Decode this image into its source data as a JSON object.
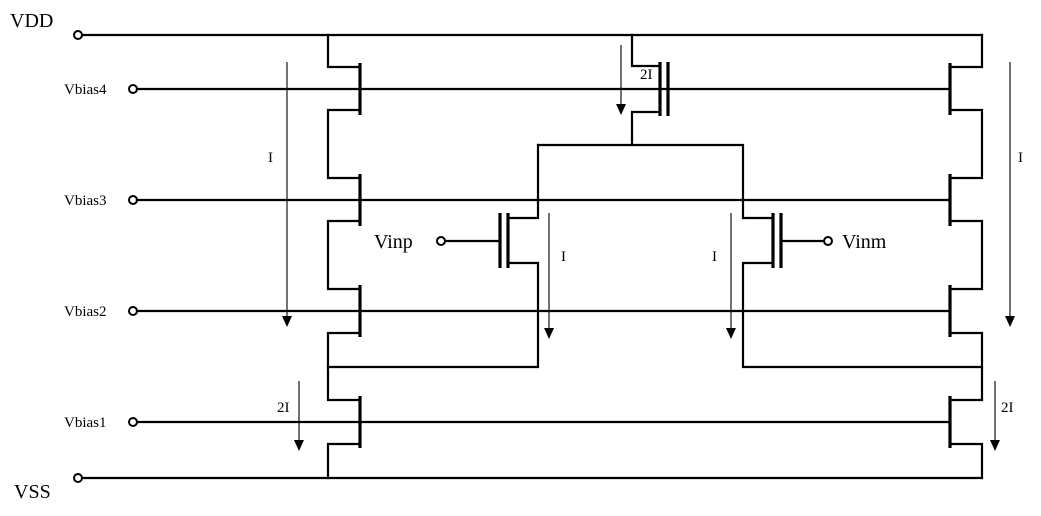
{
  "rails": {
    "vdd": "VDD",
    "vss": "VSS"
  },
  "bias": {
    "vbias4": "Vbias4",
    "vbias3": "Vbias3",
    "vbias2": "Vbias2",
    "vbias1": "Vbias1"
  },
  "inputs": {
    "vinp": "Vinp",
    "vinm": "Vinm"
  },
  "currents": {
    "left_cascode": "I",
    "tail": "2I",
    "diff_left": "I",
    "diff_right": "I",
    "right_cascode": "I",
    "left_bottom": "2I",
    "right_bottom": "2I"
  }
}
